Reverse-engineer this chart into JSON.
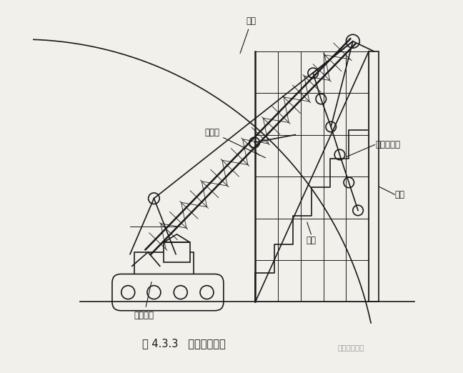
{
  "bg_color": "#f2f0eb",
  "line_color": "#1a1a1a",
  "title_text": "图 4.3.3   高空组拼吸装",
  "watermark_text": "现代锰构网架",
  "label_qiong": "稹顶",
  "label_jiao": "脚手架",
  "label_lu": "履带吸车",
  "label_xiao": "小单元网架",
  "label_kan": "看台",
  "label_gun": "碔柱",
  "lw": 1.2,
  "lw_thick": 1.8
}
